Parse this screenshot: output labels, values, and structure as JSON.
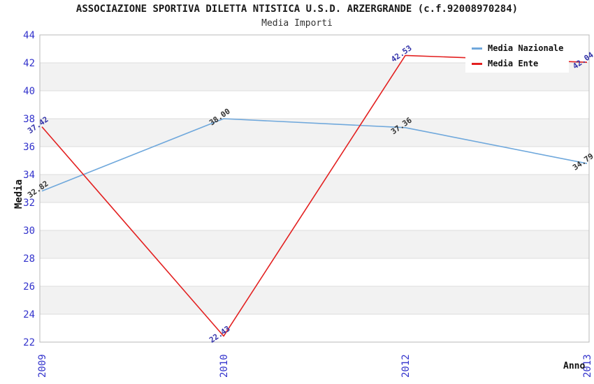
{
  "chart_data": {
    "type": "line",
    "title": "ASSOCIAZIONE SPORTIVA DILETTA NTISTICA U.S.D. ARZERGRANDE (c.f.92008970284)",
    "subtitle": "Media Importi",
    "xlabel": "Anno",
    "ylabel": "Media",
    "categories": [
      "2009",
      "2010",
      "2012",
      "2013"
    ],
    "series": [
      {
        "name": "Media Nazionale",
        "color": "#6fa8dc",
        "label_color": "#333333",
        "values": [
          32.82,
          38.0,
          37.36,
          34.79
        ],
        "value_labels": [
          "32.82",
          "38.00",
          "37.36",
          "34.79"
        ]
      },
      {
        "name": "Media Ente",
        "color": "#e32020",
        "label_color": "#3333aa",
        "values": [
          37.42,
          22.43,
          42.53,
          42.04
        ],
        "value_labels": [
          "37.42",
          "22.43",
          "42.53",
          "42.04"
        ]
      }
    ],
    "ylim": [
      22,
      44
    ],
    "ytick_step": 2,
    "grid": "horizontal-bands",
    "legend_position": "top-right",
    "axis_tick_color": "#3333cc",
    "band_colors": [
      "#ffffff",
      "#f2f2f2"
    ],
    "gridline_color": "#dcdcdc",
    "plot_border_color": "#b8b8b8"
  }
}
